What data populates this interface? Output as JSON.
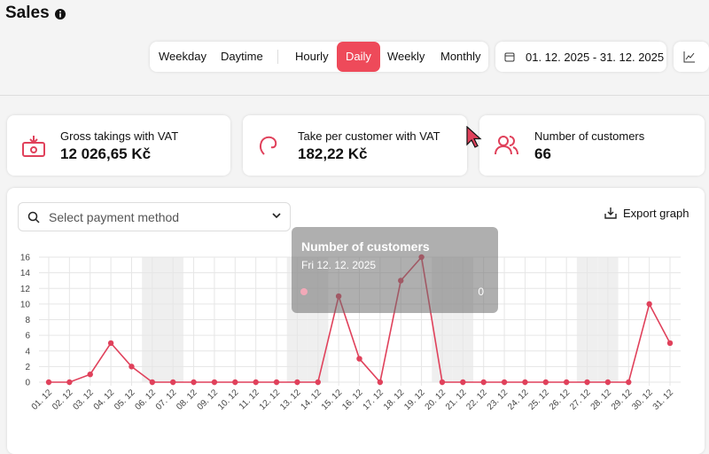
{
  "header": {
    "title": "Sales"
  },
  "tabs": [
    "Weekday",
    "Daytime",
    "Hourly",
    "Daily",
    "Weekly",
    "Monthly"
  ],
  "active_tab": 3,
  "date_range": "01. 12. 2025 - 31. 12. 2025",
  "cards": [
    {
      "label": "Gross takings with VAT",
      "value": "12 026,65 Kč"
    },
    {
      "label": "Take per customer with VAT",
      "value": "182,22 Kč"
    },
    {
      "label": "Number of customers",
      "value": "66"
    }
  ],
  "payment_select": "Select payment method",
  "export": "Export graph",
  "chart_data": {
    "type": "line",
    "categories": [
      "01. 12",
      "02. 12",
      "03. 12",
      "04. 12",
      "05. 12",
      "06. 12",
      "07. 12",
      "08. 12",
      "09. 12",
      "10. 12",
      "11. 12",
      "12. 12",
      "13. 12",
      "14. 12",
      "15. 12",
      "16. 12",
      "17. 12",
      "18. 12",
      "19. 12",
      "20. 12",
      "21. 12",
      "22. 12",
      "23. 12",
      "24. 12",
      "25. 12",
      "26. 12",
      "27. 12",
      "28. 12",
      "29. 12",
      "30. 12",
      "31. 12"
    ],
    "values": [
      0,
      0,
      1,
      5,
      2,
      0,
      0,
      0,
      0,
      0,
      0,
      0,
      0,
      0,
      11,
      3,
      0,
      13,
      16,
      0,
      0,
      0,
      0,
      0,
      0,
      0,
      0,
      0,
      0,
      10,
      5
    ],
    "color": "#e0415b",
    "ylim": [
      0,
      16
    ],
    "yticks": [
      0,
      2,
      4,
      6,
      8,
      10,
      12,
      14,
      16
    ],
    "grid": true,
    "weekend_indices": [
      5,
      6,
      12,
      13,
      19,
      20,
      26,
      27
    ],
    "tooltip": {
      "title": "Number of customers",
      "date": "Fri 12. 12. 2025",
      "value": 0
    }
  }
}
